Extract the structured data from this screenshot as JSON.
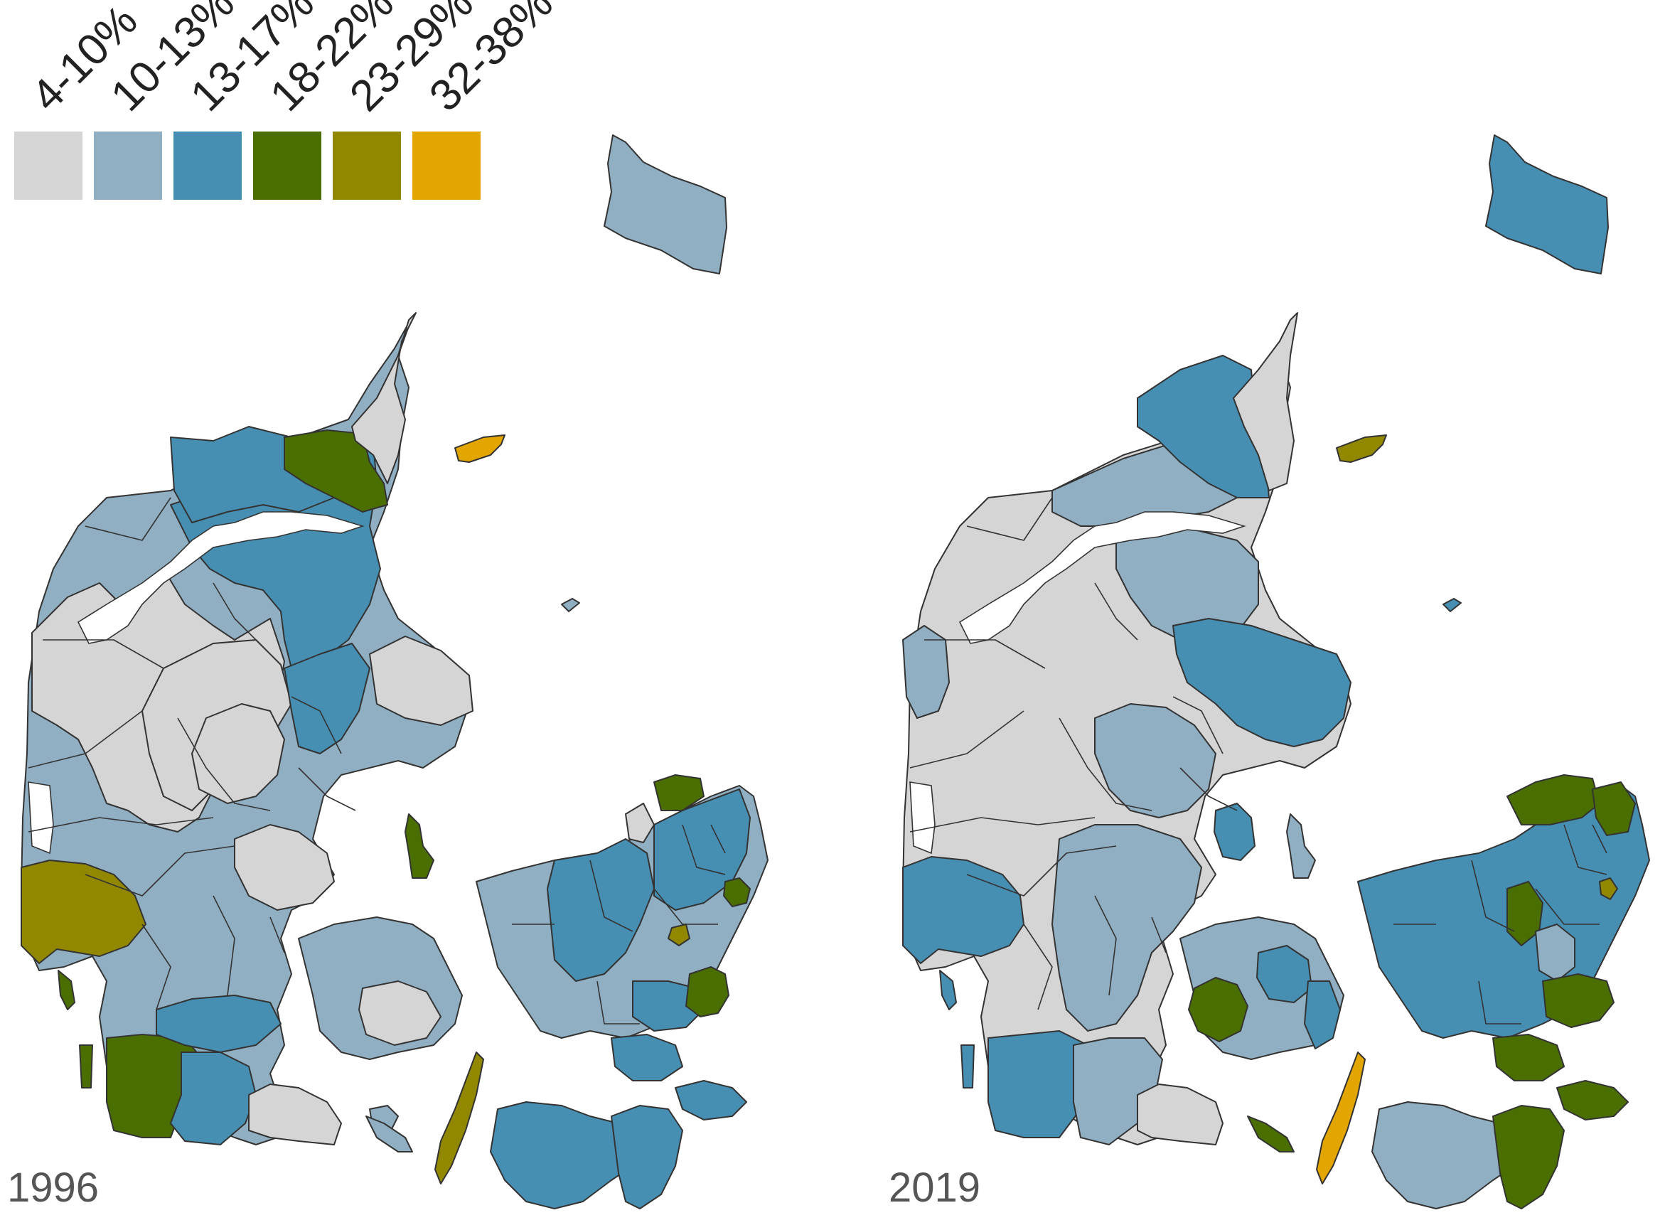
{
  "legend": {
    "items": [
      {
        "label": "4-10%",
        "color": "#d5d5d5"
      },
      {
        "label": "10-13%",
        "color": "#91afc2"
      },
      {
        "label": "13-17%",
        "color": "#478fb2"
      },
      {
        "label": "18-22%",
        "color": "#4a6e00"
      },
      {
        "label": "23-29%",
        "color": "#918800"
      },
      {
        "label": "32-38%",
        "color": "#e3a500"
      }
    ]
  },
  "panels": [
    {
      "year": "1996"
    },
    {
      "year": "2019"
    }
  ]
}
